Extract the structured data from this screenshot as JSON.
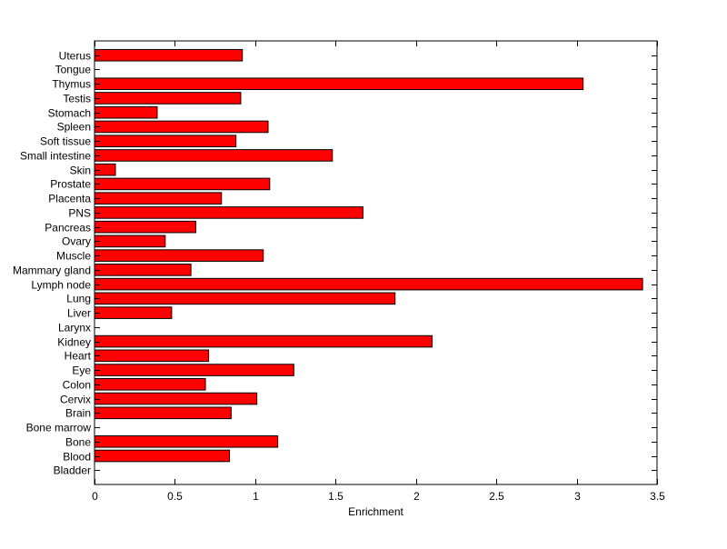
{
  "chart_data": {
    "type": "bar",
    "orientation": "horizontal",
    "title": "",
    "xlabel": "Enrichment",
    "ylabel": "",
    "xlim": [
      0,
      3.5
    ],
    "xticks": [
      0,
      0.5,
      1,
      1.5,
      2,
      2.5,
      3,
      3.5
    ],
    "xtick_labels": [
      "0",
      "0.5",
      "1",
      "1.5",
      "2",
      "2.5",
      "3",
      "3.5"
    ],
    "grid": false,
    "legend": "none",
    "bar_color": "#ff0000",
    "bar_edge_color": "#000000",
    "categories": [
      "Uterus",
      "Tongue",
      "Thymus",
      "Testis",
      "Stomach",
      "Spleen",
      "Soft tissue",
      "Small intestine",
      "Skin",
      "Prostate",
      "Placenta",
      "PNS",
      "Pancreas",
      "Ovary",
      "Muscle",
      "Mammary gland",
      "Lymph node",
      "Lung",
      "Liver",
      "Larynx",
      "Kidney",
      "Heart",
      "Eye",
      "Colon",
      "Cervix",
      "Brain",
      "Bone marrow",
      "Bone",
      "Blood",
      "Bladder"
    ],
    "values": [
      0.92,
      0,
      3.04,
      0.91,
      0.39,
      1.08,
      0.88,
      1.48,
      0.13,
      1.09,
      0.79,
      1.67,
      0.63,
      0.44,
      1.05,
      0.6,
      3.41,
      1.87,
      0.48,
      0,
      2.1,
      0.71,
      1.24,
      0.69,
      1.01,
      0.85,
      0,
      1.14,
      0.84,
      0
    ]
  }
}
